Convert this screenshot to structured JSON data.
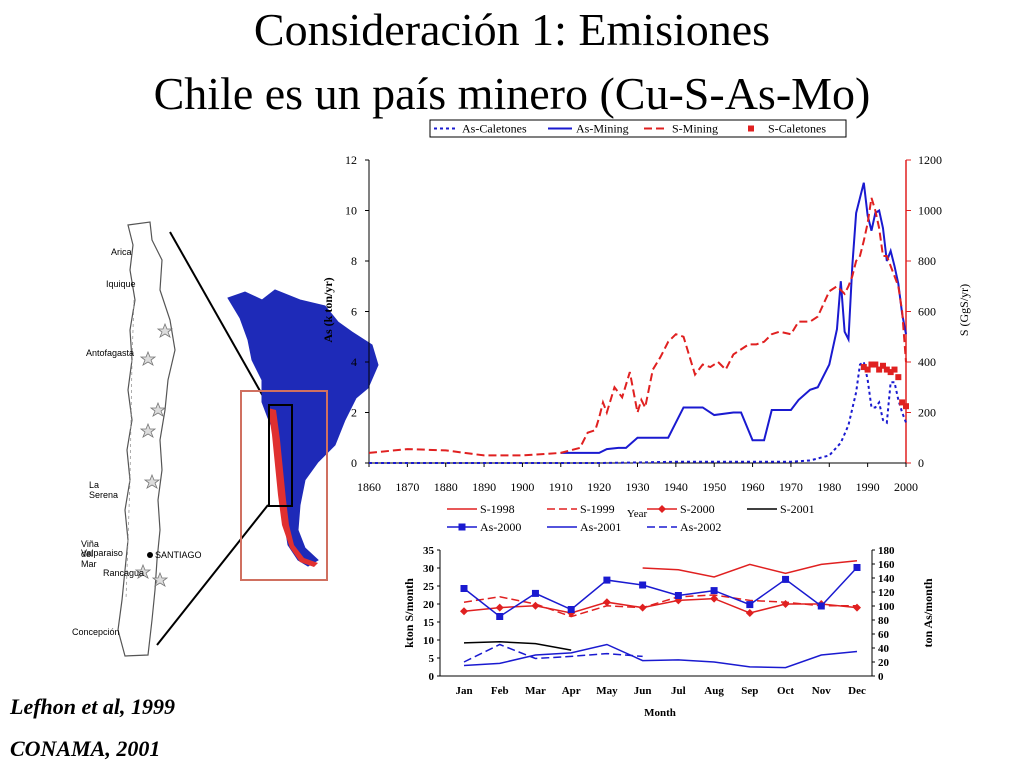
{
  "slide": {
    "title_line1": "Consideración 1: Emisiones",
    "title_line2": "Chile es un país minero (Cu-S-As-Mo)",
    "citation1": "Lefhon et al, 1999",
    "citation2": "CONAMA, 2001"
  },
  "map": {
    "cities": [
      "Arica",
      "Iquique",
      "Antofagasta",
      "La Serena",
      "Viña del Mar",
      "Valparaiso",
      "SANTIAGO",
      "Rancagua",
      "Concepción"
    ],
    "colors": {
      "continent": "#1e2ab8",
      "chile": "#e03030",
      "frame": "#d07060"
    }
  },
  "chart_data": [
    {
      "type": "line",
      "xlabel": "Year",
      "ylabel": "As (k ton/yr)",
      "y2label": "S (GgS/yr)",
      "xlim": [
        1860,
        2000
      ],
      "ylim": [
        0,
        12
      ],
      "y2lim": [
        0,
        1200
      ],
      "xticks": [
        "1860",
        "1870",
        "1880",
        "1890",
        "1900",
        "1910",
        "1920",
        "1930",
        "1940",
        "1950",
        "1960",
        "1970",
        "1980",
        "1990",
        "2000"
      ],
      "yticks": [
        "0",
        "2",
        "4",
        "6",
        "8",
        "10",
        "12"
      ],
      "y2ticks": [
        "0",
        "200",
        "400",
        "600",
        "800",
        "1000",
        "1200"
      ],
      "legend_position": "top",
      "series": [
        {
          "name": "As-Caletones",
          "axis": "left",
          "color": "#1a1ad0",
          "style": "dotted",
          "x": [
            1860,
            1910,
            1920,
            1930,
            1940,
            1950,
            1960,
            1970,
            1975,
            1980,
            1983,
            1985,
            1987,
            1988,
            1989,
            1990,
            1991,
            1992,
            1993,
            1994,
            1995,
            1996,
            1997,
            1998,
            1999,
            2000
          ],
          "y": [
            0,
            0,
            0,
            0.02,
            0.05,
            0.05,
            0.05,
            0.05,
            0.1,
            0.3,
            0.8,
            1.5,
            2.8,
            3.9,
            4.0,
            3.3,
            2.2,
            2.2,
            2.4,
            1.7,
            1.6,
            3.2,
            3.2,
            2.5,
            2.0,
            1.6
          ]
        },
        {
          "name": "As-Mining",
          "axis": "left",
          "color": "#1a1ad0",
          "style": "solid",
          "x": [
            1910,
            1915,
            1920,
            1922,
            1925,
            1927,
            1930,
            1935,
            1938,
            1940,
            1942,
            1945,
            1947,
            1950,
            1955,
            1957,
            1960,
            1963,
            1965,
            1970,
            1972,
            1975,
            1977,
            1980,
            1982,
            1983,
            1984,
            1985,
            1986,
            1987,
            1988,
            1989,
            1990,
            1991,
            1992,
            1993,
            1994,
            1995,
            1996,
            1997,
            1998,
            1999,
            2000
          ],
          "y": [
            0.4,
            0.4,
            0.4,
            0.55,
            0.6,
            0.6,
            1.0,
            1.0,
            1.0,
            1.6,
            2.2,
            2.2,
            2.2,
            1.9,
            2.0,
            2.0,
            0.9,
            0.9,
            2.1,
            2.1,
            2.5,
            2.9,
            3.0,
            3.9,
            5.3,
            7.2,
            5.2,
            4.9,
            7.8,
            9.9,
            10.5,
            11.1,
            9.8,
            9.2,
            9.9,
            10.0,
            9.3,
            8.0,
            8.4,
            7.8,
            7.1,
            5.9,
            5.1
          ]
        },
        {
          "name": "S-Mining",
          "axis": "right",
          "color": "#e02020",
          "style": "dashed",
          "x": [
            1860,
            1870,
            1880,
            1890,
            1900,
            1910,
            1915,
            1917,
            1919,
            1920,
            1921,
            1922,
            1924,
            1926,
            1928,
            1929,
            1930,
            1931,
            1932,
            1934,
            1936,
            1938,
            1940,
            1942,
            1945,
            1947,
            1949,
            1951,
            1953,
            1955,
            1957,
            1959,
            1961,
            1963,
            1965,
            1967,
            1970,
            1972,
            1975,
            1977,
            1980,
            1982,
            1984,
            1985,
            1986,
            1987,
            1988,
            1989,
            1990,
            1991,
            1992,
            1993,
            1994,
            1995,
            1996,
            1997,
            1998,
            1999,
            2000
          ],
          "y": [
            40,
            55,
            50,
            30,
            30,
            40,
            60,
            120,
            130,
            180,
            240,
            200,
            300,
            260,
            360,
            280,
            200,
            250,
            220,
            370,
            420,
            480,
            510,
            500,
            350,
            390,
            380,
            400,
            370,
            430,
            450,
            470,
            470,
            480,
            510,
            520,
            510,
            560,
            560,
            580,
            680,
            700,
            670,
            700,
            740,
            800,
            820,
            880,
            950,
            1050,
            1000,
            930,
            820,
            820,
            780,
            740,
            700,
            600,
            400
          ]
        },
        {
          "name": "S-Caletones",
          "axis": "right",
          "color": "#e02020",
          "style": "markers",
          "x": [
            1989,
            1990,
            1991,
            1992,
            1993,
            1994,
            1995,
            1996,
            1997,
            1998,
            1999,
            2000
          ],
          "y": [
            380,
            370,
            390,
            390,
            370,
            385,
            370,
            360,
            370,
            340,
            240,
            225
          ]
        }
      ]
    },
    {
      "type": "line",
      "xlabel": "Month",
      "ylabel": "kton S/month",
      "y2label": "ton As/month",
      "categories": [
        "Jan",
        "Feb",
        "Mar",
        "Apr",
        "May",
        "Jun",
        "Jul",
        "Aug",
        "Sep",
        "Oct",
        "Nov",
        "Dec"
      ],
      "ylim": [
        0,
        35
      ],
      "y2lim": [
        0,
        180
      ],
      "yticks": [
        "0",
        "5",
        "10",
        "15",
        "20",
        "25",
        "30",
        "35"
      ],
      "y2ticks": [
        "0",
        "20",
        "40",
        "60",
        "80",
        "100",
        "120",
        "140",
        "160",
        "180"
      ],
      "legend_position": "top",
      "series": [
        {
          "name": "S-1998",
          "axis": "left",
          "color": "#e02020",
          "style": "solid",
          "values": [
            null,
            null,
            null,
            null,
            null,
            30,
            29.5,
            27.5,
            31,
            28.5,
            31,
            32
          ]
        },
        {
          "name": "S-1999",
          "axis": "left",
          "color": "#e02020",
          "style": "dashed",
          "values": [
            20.5,
            22,
            20,
            16.5,
            19.5,
            19,
            22,
            22.5,
            21,
            20.5,
            19.5,
            19.5
          ]
        },
        {
          "name": "S-2000",
          "axis": "left",
          "color": "#e02020",
          "style": "solid-markers",
          "values": [
            18,
            19,
            19.5,
            17.5,
            20.5,
            19,
            21,
            21.5,
            17.5,
            20,
            20,
            19
          ]
        },
        {
          "name": "S-2001",
          "axis": "left",
          "color": "#000000",
          "style": "solid",
          "values": [
            9.2,
            9.5,
            9,
            7.2,
            null,
            null,
            null,
            null,
            null,
            null,
            null,
            null
          ]
        },
        {
          "name": "As-2000",
          "axis": "right",
          "color": "#1a1ad0",
          "style": "solid-markers",
          "values": [
            125,
            85,
            118,
            95,
            137,
            130,
            115,
            122,
            102,
            138,
            100,
            155
          ]
        },
        {
          "name": "As-2001",
          "axis": "right",
          "color": "#1a1ad0",
          "style": "solid",
          "values": [
            15,
            18,
            30,
            33,
            45,
            22,
            23,
            20,
            13,
            12,
            30,
            35
          ]
        },
        {
          "name": "As-2002",
          "axis": "right",
          "color": "#1a1ad0",
          "style": "dashed",
          "values": [
            20,
            45,
            25,
            28,
            32,
            28,
            null,
            null,
            null,
            null,
            null,
            null
          ]
        }
      ]
    }
  ]
}
